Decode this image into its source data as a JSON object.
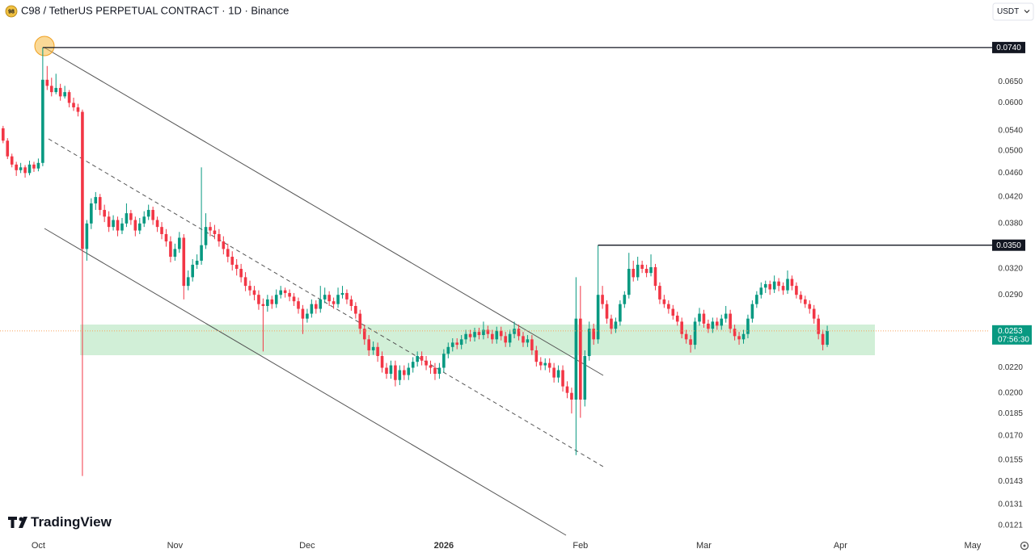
{
  "chart_data": {
    "type": "candlestick",
    "symbol_badge": "98",
    "title": "C98 / TetherUS PERPETUAL CONTRACT · 1D · Binance",
    "currency": "USDT",
    "brand": "TradingView",
    "countdown": "07:56:30",
    "log_scale": true,
    "colors": {
      "up": "#089981",
      "down": "#f23645"
    },
    "ylim": [
      0.0117,
      0.0886
    ],
    "yticks": [
      {
        "value": 0.065,
        "label": "0.0650"
      },
      {
        "value": 0.06,
        "label": "0.0600"
      },
      {
        "value": 0.054,
        "label": "0.0540"
      },
      {
        "value": 0.05,
        "label": "0.0500"
      },
      {
        "value": 0.046,
        "label": "0.0460"
      },
      {
        "value": 0.042,
        "label": "0.0420"
      },
      {
        "value": 0.038,
        "label": "0.0380"
      },
      {
        "value": 0.032,
        "label": "0.0320"
      },
      {
        "value": 0.029,
        "label": "0.0290"
      },
      {
        "value": 0.022,
        "label": "0.0220"
      },
      {
        "value": 0.02,
        "label": "0.0200"
      },
      0.0185,
      {
        "value": 0.017,
        "label": "0.0170"
      },
      0.0155,
      0.0143,
      0.0131,
      0.0121
    ],
    "xlim": [
      -0.7,
      223.5
    ],
    "xticks": [
      {
        "value": 8,
        "label": "Oct"
      },
      {
        "value": 39,
        "label": "Nov"
      },
      {
        "value": 69,
        "label": "Dec"
      },
      {
        "value": 100,
        "label": "2026"
      },
      {
        "value": 131,
        "label": "Feb"
      },
      {
        "value": 159,
        "label": "Mar"
      },
      {
        "value": 190,
        "label": "Apr"
      },
      {
        "value": 220,
        "label": "May"
      }
    ],
    "levels": [
      {
        "value": 0.074,
        "label": "0.0740"
      },
      {
        "value": 0.035,
        "label": "0.0350"
      }
    ],
    "candles": [
      [
        0.0545,
        0.055,
        0.0515,
        0.052
      ],
      [
        0.052,
        0.0525,
        0.0485,
        0.049
      ],
      [
        0.049,
        0.0495,
        0.047,
        0.0475
      ],
      [
        0.0475,
        0.048,
        0.0455,
        0.0465
      ],
      [
        0.0465,
        0.0478,
        0.046,
        0.047
      ],
      [
        0.047,
        0.0474,
        0.0452,
        0.046
      ],
      [
        0.046,
        0.0482,
        0.0456,
        0.0475
      ],
      [
        0.0475,
        0.048,
        0.0462,
        0.0468
      ],
      [
        0.0468,
        0.0486,
        0.0463,
        0.0478
      ],
      [
        0.0478,
        0.074,
        0.0472,
        0.0655
      ],
      [
        0.0655,
        0.069,
        0.063,
        0.064
      ],
      [
        0.064,
        0.066,
        0.0615,
        0.0625
      ],
      [
        0.0625,
        0.067,
        0.062,
        0.0635
      ],
      [
        0.0635,
        0.0645,
        0.0605,
        0.0615
      ],
      [
        0.0615,
        0.064,
        0.061,
        0.0625
      ],
      [
        0.0625,
        0.063,
        0.059,
        0.06
      ],
      [
        0.06,
        0.0612,
        0.0582,
        0.059
      ],
      [
        0.059,
        0.0598,
        0.057,
        0.058
      ],
      [
        0.058,
        0.0585,
        0.0146,
        0.0345
      ],
      [
        0.0345,
        0.0385,
        0.033,
        0.038
      ],
      [
        0.038,
        0.0418,
        0.0372,
        0.041
      ],
      [
        0.041,
        0.0428,
        0.04,
        0.042
      ],
      [
        0.042,
        0.0425,
        0.0392,
        0.04
      ],
      [
        0.04,
        0.0408,
        0.0382,
        0.039
      ],
      [
        0.039,
        0.0398,
        0.0368,
        0.0375
      ],
      [
        0.0375,
        0.0392,
        0.037,
        0.0385
      ],
      [
        0.0385,
        0.039,
        0.0362,
        0.037
      ],
      [
        0.037,
        0.0388,
        0.0365,
        0.038
      ],
      [
        0.038,
        0.041,
        0.0375,
        0.0395
      ],
      [
        0.0395,
        0.04,
        0.0378,
        0.0385
      ],
      [
        0.0385,
        0.039,
        0.0362,
        0.037
      ],
      [
        0.037,
        0.0388,
        0.0365,
        0.038
      ],
      [
        0.038,
        0.0398,
        0.0375,
        0.039
      ],
      [
        0.039,
        0.0408,
        0.0385,
        0.04
      ],
      [
        0.04,
        0.0405,
        0.0378,
        0.0385
      ],
      [
        0.0385,
        0.039,
        0.0368,
        0.0375
      ],
      [
        0.0375,
        0.0382,
        0.0358,
        0.0365
      ],
      [
        0.0365,
        0.0372,
        0.0348,
        0.0355
      ],
      [
        0.0355,
        0.0362,
        0.0328,
        0.0335
      ],
      [
        0.0335,
        0.0352,
        0.033,
        0.0345
      ],
      [
        0.0345,
        0.0368,
        0.034,
        0.036
      ],
      [
        0.036,
        0.0365,
        0.0285,
        0.03
      ],
      [
        0.03,
        0.0318,
        0.0295,
        0.031
      ],
      [
        0.031,
        0.0332,
        0.0305,
        0.0325
      ],
      [
        0.0325,
        0.0338,
        0.032,
        0.033
      ],
      [
        0.033,
        0.047,
        0.0325,
        0.035
      ],
      [
        0.035,
        0.0395,
        0.0345,
        0.0375
      ],
      [
        0.0375,
        0.0382,
        0.0362,
        0.037
      ],
      [
        0.037,
        0.0378,
        0.0358,
        0.0365
      ],
      [
        0.0365,
        0.0372,
        0.0348,
        0.0355
      ],
      [
        0.0355,
        0.0362,
        0.0338,
        0.0345
      ],
      [
        0.0345,
        0.0352,
        0.0328,
        0.0335
      ],
      [
        0.0335,
        0.0342,
        0.0318,
        0.0325
      ],
      [
        0.0325,
        0.0332,
        0.0312,
        0.032
      ],
      [
        0.032,
        0.0326,
        0.0304,
        0.031
      ],
      [
        0.031,
        0.0316,
        0.0294,
        0.03
      ],
      [
        0.03,
        0.0306,
        0.0289,
        0.0295
      ],
      [
        0.0295,
        0.03,
        0.0284,
        0.029
      ],
      [
        0.029,
        0.0295,
        0.0274,
        0.028
      ],
      [
        0.028,
        0.0286,
        0.0234,
        0.0278
      ],
      [
        0.0278,
        0.029,
        0.0272,
        0.0285
      ],
      [
        0.0285,
        0.0289,
        0.0275,
        0.028
      ],
      [
        0.028,
        0.0296,
        0.0276,
        0.029
      ],
      [
        0.029,
        0.03,
        0.0286,
        0.0295
      ],
      [
        0.0295,
        0.0298,
        0.0287,
        0.0292
      ],
      [
        0.0292,
        0.0296,
        0.0283,
        0.0288
      ],
      [
        0.0288,
        0.0292,
        0.0278,
        0.0283
      ],
      [
        0.0283,
        0.0287,
        0.027,
        0.0275
      ],
      [
        0.0275,
        0.0279,
        0.025,
        0.0265
      ],
      [
        0.0265,
        0.0275,
        0.0261,
        0.027
      ],
      [
        0.027,
        0.0285,
        0.0266,
        0.028
      ],
      [
        0.028,
        0.0284,
        0.027,
        0.0275
      ],
      [
        0.0275,
        0.03,
        0.0271,
        0.0285
      ],
      [
        0.0285,
        0.0298,
        0.0281,
        0.029
      ],
      [
        0.029,
        0.0294,
        0.0278,
        0.0283
      ],
      [
        0.0283,
        0.0287,
        0.0275,
        0.028
      ],
      [
        0.028,
        0.0298,
        0.0276,
        0.029
      ],
      [
        0.029,
        0.03,
        0.0286,
        0.0292
      ],
      [
        0.0292,
        0.0296,
        0.028,
        0.0285
      ],
      [
        0.0285,
        0.0289,
        0.0273,
        0.0278
      ],
      [
        0.0278,
        0.0282,
        0.0265,
        0.027
      ],
      [
        0.027,
        0.0274,
        0.025,
        0.0255
      ],
      [
        0.0255,
        0.0259,
        0.024,
        0.0245
      ],
      [
        0.0245,
        0.0249,
        0.023,
        0.0235
      ],
      [
        0.0235,
        0.0243,
        0.0231,
        0.0238
      ],
      [
        0.0238,
        0.0242,
        0.0225,
        0.023
      ],
      [
        0.023,
        0.0234,
        0.0216,
        0.022
      ],
      [
        0.022,
        0.0224,
        0.0211,
        0.0215
      ],
      [
        0.0215,
        0.0226,
        0.0211,
        0.0222
      ],
      [
        0.0222,
        0.0226,
        0.0205,
        0.021
      ],
      [
        0.021,
        0.0222,
        0.0206,
        0.0218
      ],
      [
        0.0218,
        0.0222,
        0.021,
        0.0214
      ],
      [
        0.0214,
        0.0224,
        0.021,
        0.022
      ],
      [
        0.022,
        0.0229,
        0.0216,
        0.0225
      ],
      [
        0.0225,
        0.0234,
        0.0221,
        0.023
      ],
      [
        0.023,
        0.0234,
        0.0222,
        0.0226
      ],
      [
        0.0226,
        0.023,
        0.0218,
        0.0222
      ],
      [
        0.0222,
        0.0226,
        0.0215,
        0.022
      ],
      [
        0.022,
        0.0224,
        0.021,
        0.0215
      ],
      [
        0.0215,
        0.0224,
        0.0211,
        0.022
      ],
      [
        0.022,
        0.0236,
        0.0216,
        0.0232
      ],
      [
        0.0232,
        0.0242,
        0.0228,
        0.0238
      ],
      [
        0.0238,
        0.0246,
        0.0234,
        0.0242
      ],
      [
        0.0242,
        0.0246,
        0.0236,
        0.024
      ],
      [
        0.024,
        0.0249,
        0.0236,
        0.0245
      ],
      [
        0.0245,
        0.0254,
        0.0241,
        0.025
      ],
      [
        0.025,
        0.0254,
        0.0243,
        0.0247
      ],
      [
        0.0247,
        0.0256,
        0.0243,
        0.0252
      ],
      [
        0.0252,
        0.0256,
        0.0245,
        0.0249
      ],
      [
        0.0249,
        0.0262,
        0.0245,
        0.0254
      ],
      [
        0.0254,
        0.0258,
        0.0246,
        0.025
      ],
      [
        0.025,
        0.0254,
        0.0241,
        0.0245
      ],
      [
        0.0245,
        0.0257,
        0.0241,
        0.0253
      ],
      [
        0.0253,
        0.0257,
        0.0244,
        0.0248
      ],
      [
        0.0248,
        0.0252,
        0.0238,
        0.0242
      ],
      [
        0.0242,
        0.0254,
        0.0238,
        0.025
      ],
      [
        0.025,
        0.0262,
        0.0246,
        0.0255
      ],
      [
        0.0255,
        0.0259,
        0.0244,
        0.0248
      ],
      [
        0.0248,
        0.0252,
        0.0238,
        0.0242
      ],
      [
        0.0242,
        0.0249,
        0.0238,
        0.0245
      ],
      [
        0.0245,
        0.0249,
        0.0231,
        0.0235
      ],
      [
        0.0235,
        0.0239,
        0.0221,
        0.0225
      ],
      [
        0.0225,
        0.0229,
        0.0218,
        0.0222
      ],
      [
        0.0222,
        0.0228,
        0.0218,
        0.0224
      ],
      [
        0.0224,
        0.0228,
        0.0216,
        0.022
      ],
      [
        0.022,
        0.0224,
        0.0208,
        0.0212
      ],
      [
        0.0212,
        0.0222,
        0.0208,
        0.0218
      ],
      [
        0.0218,
        0.0222,
        0.0201,
        0.0205
      ],
      [
        0.0205,
        0.0209,
        0.0196,
        0.02
      ],
      [
        0.02,
        0.0204,
        0.0185,
        0.0195
      ],
      [
        0.0195,
        0.031,
        0.0158,
        0.0265
      ],
      [
        0.0265,
        0.03,
        0.0182,
        0.0195
      ],
      [
        0.0195,
        0.0235,
        0.019,
        0.023
      ],
      [
        0.023,
        0.0262,
        0.0226,
        0.0255
      ],
      [
        0.0255,
        0.026,
        0.024,
        0.0245
      ],
      [
        0.0245,
        0.035,
        0.0241,
        0.029
      ],
      [
        0.029,
        0.03,
        0.0275,
        0.028
      ],
      [
        0.028,
        0.0284,
        0.026,
        0.0265
      ],
      [
        0.0265,
        0.0269,
        0.025,
        0.0255
      ],
      [
        0.0255,
        0.0266,
        0.0251,
        0.0262
      ],
      [
        0.0262,
        0.0284,
        0.0258,
        0.028
      ],
      [
        0.028,
        0.0294,
        0.0276,
        0.029
      ],
      [
        0.029,
        0.034,
        0.0286,
        0.032
      ],
      [
        0.032,
        0.033,
        0.0305,
        0.031
      ],
      [
        0.031,
        0.0335,
        0.0306,
        0.0325
      ],
      [
        0.0325,
        0.033,
        0.0315,
        0.032
      ],
      [
        0.032,
        0.0325,
        0.031,
        0.0315
      ],
      [
        0.0315,
        0.0338,
        0.0311,
        0.0322
      ],
      [
        0.0322,
        0.0326,
        0.0295,
        0.03
      ],
      [
        0.03,
        0.0304,
        0.028,
        0.0285
      ],
      [
        0.0285,
        0.029,
        0.0276,
        0.028
      ],
      [
        0.028,
        0.0284,
        0.027,
        0.0275
      ],
      [
        0.0275,
        0.0279,
        0.0264,
        0.0268
      ],
      [
        0.0268,
        0.0272,
        0.0258,
        0.0262
      ],
      [
        0.0262,
        0.0266,
        0.0246,
        0.025
      ],
      [
        0.025,
        0.0254,
        0.0241,
        0.0245
      ],
      [
        0.0245,
        0.0249,
        0.0233,
        0.024
      ],
      [
        0.024,
        0.0266,
        0.0236,
        0.0262
      ],
      [
        0.0262,
        0.0276,
        0.0258,
        0.027
      ],
      [
        0.027,
        0.0274,
        0.0256,
        0.026
      ],
      [
        0.026,
        0.0264,
        0.0251,
        0.0255
      ],
      [
        0.0255,
        0.0266,
        0.0251,
        0.0262
      ],
      [
        0.0262,
        0.0266,
        0.0254,
        0.0258
      ],
      [
        0.0258,
        0.0269,
        0.0254,
        0.0265
      ],
      [
        0.0265,
        0.0278,
        0.0261,
        0.027
      ],
      [
        0.027,
        0.0274,
        0.0251,
        0.0255
      ],
      [
        0.0255,
        0.0259,
        0.0244,
        0.0248
      ],
      [
        0.0248,
        0.0252,
        0.024,
        0.0245
      ],
      [
        0.0245,
        0.0254,
        0.0241,
        0.025
      ],
      [
        0.025,
        0.0269,
        0.0246,
        0.0265
      ],
      [
        0.0265,
        0.0284,
        0.0261,
        0.028
      ],
      [
        0.028,
        0.0294,
        0.0276,
        0.029
      ],
      [
        0.029,
        0.0304,
        0.0286,
        0.0298
      ],
      [
        0.0298,
        0.0306,
        0.0292,
        0.0302
      ],
      [
        0.0302,
        0.0306,
        0.029,
        0.0296
      ],
      [
        0.0296,
        0.0312,
        0.0292,
        0.0305
      ],
      [
        0.0305,
        0.0309,
        0.0294,
        0.03
      ],
      [
        0.03,
        0.0304,
        0.029,
        0.0295
      ],
      [
        0.0295,
        0.0318,
        0.0291,
        0.0308
      ],
      [
        0.0308,
        0.0312,
        0.0295,
        0.03
      ],
      [
        0.03,
        0.0304,
        0.0286,
        0.029
      ],
      [
        0.029,
        0.0294,
        0.0281,
        0.0285
      ],
      [
        0.0285,
        0.0289,
        0.0276,
        0.028
      ],
      [
        0.028,
        0.0284,
        0.027,
        0.0275
      ],
      [
        0.0275,
        0.0279,
        0.026,
        0.0265
      ],
      [
        0.0265,
        0.0269,
        0.0245,
        0.025
      ],
      [
        0.025,
        0.0254,
        0.0235,
        0.024
      ],
      [
        0.024,
        0.0258,
        0.0238,
        0.0253
      ]
    ]
  }
}
